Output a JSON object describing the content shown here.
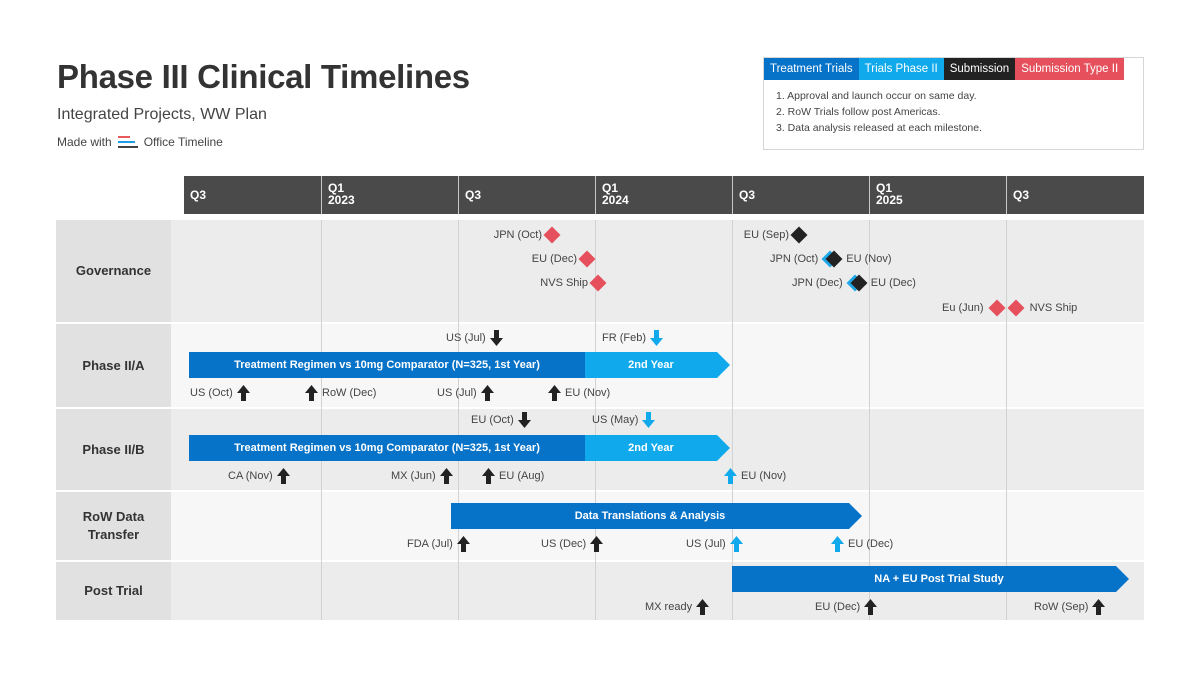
{
  "header": {
    "title": "Phase III Clinical Timelines",
    "subtitle": "Integrated Projects, WW Plan",
    "made_with": "Made with",
    "brand": "Office Timeline"
  },
  "legend": {
    "keys": [
      {
        "label": "Treatment Trials",
        "color": "#0672c8"
      },
      {
        "label": "Trials Phase II",
        "color": "#10a9ec"
      },
      {
        "label": "Submission",
        "color": "#222222"
      },
      {
        "label": "Submission Type II",
        "color": "#e5505c"
      }
    ],
    "notes": [
      "1.  Approval and launch occur on same day.",
      "2.  RoW Trials follow post Americas.",
      "3.  Data analysis released at each milestone."
    ]
  },
  "scale": {
    "ticks": [
      {
        "q": "Q3",
        "year": ""
      },
      {
        "q": "Q1",
        "year": "2023"
      },
      {
        "q": "Q3",
        "year": ""
      },
      {
        "q": "Q1",
        "year": "2024"
      },
      {
        "q": "Q3",
        "year": ""
      },
      {
        "q": "Q1",
        "year": "2025"
      },
      {
        "q": "Q3",
        "year": ""
      }
    ]
  },
  "swimlanes": [
    {
      "label": "Governance"
    },
    {
      "label": "Phase II/A"
    },
    {
      "label": "Phase II/B"
    },
    {
      "label": "RoW Data\nTransfer"
    },
    {
      "label": "Post Trial"
    }
  ],
  "governance": [
    {
      "label": "JPN (Oct)",
      "kind": "red"
    },
    {
      "label": "EU (Dec)",
      "kind": "red"
    },
    {
      "label": "NVS Ship",
      "kind": "red"
    },
    {
      "label": "EU (Sep)",
      "kind": "black"
    },
    {
      "label": "JPN (Oct)",
      "kind": "stack"
    },
    {
      "label": "EU (Nov)",
      "kind": "stack"
    },
    {
      "label": "JPN (Dec)",
      "kind": "stack"
    },
    {
      "label": "EU (Dec)",
      "kind": "stack"
    },
    {
      "label": "Eu (Jun)",
      "kind": "red"
    },
    {
      "label": "NVS Ship",
      "kind": "red"
    }
  ],
  "phase2a": {
    "bar_main": "Treatment Regimen vs 10mg Comparator (N=325, 1st Year)",
    "bar_second": "2nd Year",
    "top": [
      {
        "label": "US (Jul)",
        "color": "#222222"
      },
      {
        "label": "FR (Feb)",
        "color": "#10a9ec"
      }
    ],
    "bottom": [
      {
        "label": "US (Oct)",
        "color": "#222222"
      },
      {
        "label": "RoW (Dec)",
        "color": "#222222"
      },
      {
        "label": "US (Jul)",
        "color": "#222222"
      },
      {
        "label": "EU (Nov)",
        "color": "#222222"
      }
    ]
  },
  "phase2b": {
    "bar_main": "Treatment Regimen vs 10mg Comparator (N=325, 1st Year)",
    "bar_second": "2nd Year",
    "top": [
      {
        "label": "EU (Oct)",
        "color": "#222222"
      },
      {
        "label": "US (May)",
        "color": "#10a9ec"
      }
    ],
    "bottom": [
      {
        "label": "CA (Nov)",
        "color": "#222222"
      },
      {
        "label": "MX (Jun)",
        "color": "#222222"
      },
      {
        "label": "EU (Aug)",
        "color": "#222222"
      },
      {
        "label": "EU (Nov)",
        "color": "#10a9ec"
      }
    ]
  },
  "row_transfer": {
    "bar": "Data Translations & Analysis",
    "bottom": [
      {
        "label": "FDA (Jul)",
        "color": "#222222"
      },
      {
        "label": "US (Dec)",
        "color": "#222222"
      },
      {
        "label": "US (Jul)",
        "color": "#10a9ec"
      },
      {
        "label": "EU (Dec)",
        "color": "#10a9ec"
      }
    ]
  },
  "post_trial": {
    "bar": "NA + EU Post Trial Study",
    "bottom": [
      {
        "label": "MX ready",
        "color": "#222222"
      },
      {
        "label": "EU (Dec)",
        "color": "#222222"
      },
      {
        "label": "RoW (Sep)",
        "color": "#222222"
      }
    ]
  }
}
